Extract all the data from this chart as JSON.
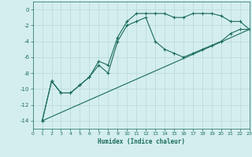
{
  "xlabel": "Humidex (Indice chaleur)",
  "background_color": "#d4eeee",
  "grid_color": "#b8d8d8",
  "line_color": "#1a6b5a",
  "xlim": [
    0,
    23
  ],
  "ylim": [
    -15,
    1
  ],
  "xticks": [
    0,
    1,
    2,
    3,
    4,
    5,
    6,
    7,
    8,
    9,
    10,
    11,
    12,
    13,
    14,
    15,
    16,
    17,
    18,
    19,
    20,
    21,
    22,
    23
  ],
  "yticks": [
    0,
    -2,
    -4,
    -6,
    -8,
    -10,
    -12,
    -14
  ],
  "curve1_x": [
    1,
    2,
    3,
    4,
    5,
    6,
    7,
    8,
    9,
    10,
    11,
    12,
    13,
    14,
    15,
    16,
    17,
    18,
    19,
    20,
    21,
    22,
    23
  ],
  "curve1_y": [
    -14,
    -9,
    -10.5,
    -10.5,
    -9.5,
    -8.5,
    -6.5,
    -7,
    -3.5,
    -1.5,
    -0.5,
    -0.5,
    -0.5,
    -0.5,
    -1,
    -1,
    -0.5,
    -0.5,
    -0.5,
    -0.8,
    -1.5,
    -1.5,
    -2.5
  ],
  "curve2_x": [
    1,
    2,
    3,
    4,
    5,
    6,
    7,
    8,
    9,
    10,
    11,
    12,
    13,
    14,
    15,
    16,
    17,
    18,
    19,
    20,
    21,
    22,
    23
  ],
  "curve2_y": [
    -14,
    -9,
    -10.5,
    -10.5,
    -9.5,
    -8.5,
    -7,
    -8,
    -4,
    -2,
    -1.5,
    -1,
    -4,
    -5,
    -5.5,
    -6,
    -5.5,
    -5,
    -4.5,
    -4,
    -3,
    -2.5,
    -2.5
  ],
  "curve3_x": [
    1,
    23
  ],
  "curve3_y": [
    -14,
    -2.5
  ],
  "marker_curve1_x": [
    2,
    3,
    4,
    5,
    6,
    7,
    8,
    9,
    10,
    11,
    12,
    13,
    14,
    15,
    16,
    17,
    18,
    19,
    20,
    21,
    22,
    23
  ],
  "marker_curve1_y": [
    -9,
    -10.5,
    -10.5,
    -9.5,
    -8.5,
    -6.5,
    -7,
    -3.5,
    -1.5,
    -0.5,
    -0.5,
    -0.5,
    -0.5,
    -1,
    -1,
    -0.5,
    -0.5,
    -0.5,
    -0.8,
    -1.5,
    -1.5,
    -2.5
  ],
  "marker_curve2_x": [
    5,
    6,
    7,
    8,
    9,
    10,
    11,
    12,
    13,
    14,
    15,
    16,
    17,
    18,
    19,
    20,
    21,
    22,
    23
  ],
  "marker_curve2_y": [
    -9.5,
    -8.5,
    -7,
    -8,
    -4,
    -2,
    -1.5,
    -1,
    -4,
    -5,
    -5.5,
    -6,
    -5.5,
    -5,
    -4.5,
    -4,
    -3,
    -2.5,
    -2.5
  ]
}
